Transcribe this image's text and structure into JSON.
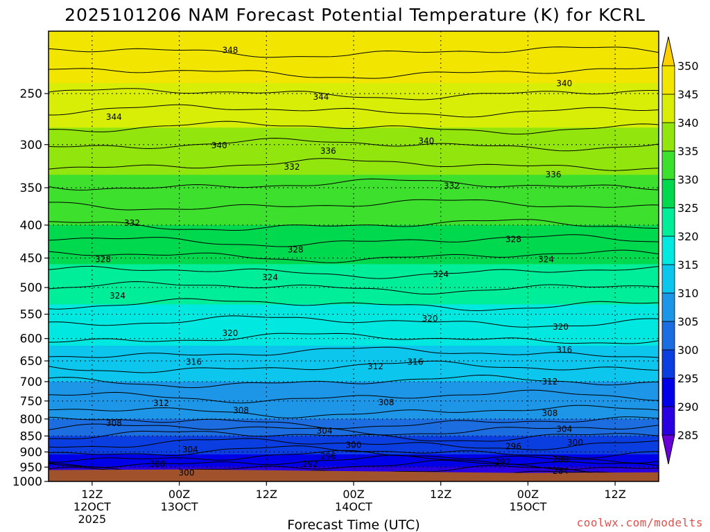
{
  "chart_data": {
    "type": "heatmap",
    "title": "2025101206 NAM Forecast Potential Temperature (K) for KCRL",
    "xlabel": "Forecast Time (UTC)",
    "ylabel": "",
    "y_scale": "log-pressure",
    "y_ticks": [
      250,
      300,
      350,
      400,
      450,
      500,
      550,
      600,
      650,
      700,
      750,
      800,
      850,
      900,
      950,
      1000
    ],
    "ylim": [
      1000,
      200
    ],
    "x_ticks": [
      {
        "hour": 6,
        "lines": [
          "12Z",
          "12OCT",
          "2025"
        ]
      },
      {
        "hour": 18,
        "lines": [
          "00Z",
          "13OCT"
        ]
      },
      {
        "hour": 30,
        "lines": [
          "12Z"
        ]
      },
      {
        "hour": 42,
        "lines": [
          "00Z",
          "14OCT"
        ]
      },
      {
        "hour": 54,
        "lines": [
          "12Z"
        ]
      },
      {
        "hour": 66,
        "lines": [
          "00Z",
          "15OCT"
        ]
      },
      {
        "hour": 78,
        "lines": [
          "12Z"
        ]
      }
    ],
    "xlim": [
      0,
      84
    ],
    "colorbar": {
      "levels": [
        285,
        290,
        295,
        300,
        305,
        310,
        315,
        320,
        325,
        330,
        335,
        340,
        345,
        350
      ],
      "colors": [
        "#6a00d8",
        "#2a00e0",
        "#0000e8",
        "#0a3ee0",
        "#1c6ee0",
        "#1e96e8",
        "#0cc6ee",
        "#00e8e0",
        "#00ee9a",
        "#00d84e",
        "#3ee02e",
        "#92e60e",
        "#d8ee06",
        "#f2e600",
        "#ffd000"
      ],
      "extend": "both"
    },
    "contour_labels": [
      {
        "text": "348",
        "hour": 25,
        "p": 214
      },
      {
        "text": "344",
        "hour": 9,
        "p": 272
      },
      {
        "text": "344",
        "hour": 37.5,
        "p": 253
      },
      {
        "text": "340",
        "hour": 71,
        "p": 241
      },
      {
        "text": "340",
        "hour": 23.5,
        "p": 301
      },
      {
        "text": "336",
        "hour": 38.5,
        "p": 307
      },
      {
        "text": "340",
        "hour": 52,
        "p": 296
      },
      {
        "text": "336",
        "hour": 69.5,
        "p": 334
      },
      {
        "text": "332",
        "hour": 33.5,
        "p": 325
      },
      {
        "text": "332",
        "hour": 55.5,
        "p": 348
      },
      {
        "text": "332",
        "hour": 11.5,
        "p": 397
      },
      {
        "text": "328",
        "hour": 64,
        "p": 421
      },
      {
        "text": "328",
        "hour": 34,
        "p": 437
      },
      {
        "text": "324",
        "hour": 68.5,
        "p": 452
      },
      {
        "text": "328",
        "hour": 7.5,
        "p": 452
      },
      {
        "text": "324",
        "hour": 30.5,
        "p": 482
      },
      {
        "text": "324",
        "hour": 54,
        "p": 477
      },
      {
        "text": "324",
        "hour": 9.5,
        "p": 515
      },
      {
        "text": "320",
        "hour": 52.5,
        "p": 559
      },
      {
        "text": "320",
        "hour": 25,
        "p": 589
      },
      {
        "text": "320",
        "hour": 70.5,
        "p": 576
      },
      {
        "text": "316",
        "hour": 71,
        "p": 625
      },
      {
        "text": "312",
        "hour": 45,
        "p": 663
      },
      {
        "text": "316",
        "hour": 50.5,
        "p": 652
      },
      {
        "text": "316",
        "hour": 20,
        "p": 652
      },
      {
        "text": "312",
        "hour": 69,
        "p": 700
      },
      {
        "text": "312",
        "hour": 15.5,
        "p": 756
      },
      {
        "text": "308",
        "hour": 46.5,
        "p": 754
      },
      {
        "text": "308",
        "hour": 26.5,
        "p": 776
      },
      {
        "text": "308",
        "hour": 69,
        "p": 784
      },
      {
        "text": "308",
        "hour": 9,
        "p": 812
      },
      {
        "text": "304",
        "hour": 38,
        "p": 835
      },
      {
        "text": "304",
        "hour": 71,
        "p": 830
      },
      {
        "text": "300",
        "hour": 72.5,
        "p": 871
      },
      {
        "text": "300",
        "hour": 42,
        "p": 878
      },
      {
        "text": "304",
        "hour": 19.5,
        "p": 892
      },
      {
        "text": "296",
        "hour": 64,
        "p": 882
      },
      {
        "text": "296",
        "hour": 38.5,
        "p": 914
      },
      {
        "text": "292",
        "hour": 36,
        "p": 940
      },
      {
        "text": "288",
        "hour": 70.5,
        "p": 925
      },
      {
        "text": "292",
        "hour": 62.5,
        "p": 933
      },
      {
        "text": "300",
        "hour": 15,
        "p": 940
      },
      {
        "text": "284",
        "hour": 70.5,
        "p": 964
      },
      {
        "text": "300",
        "hour": 19,
        "p": 970
      }
    ]
  },
  "credit": "coolwx.com/modelts"
}
